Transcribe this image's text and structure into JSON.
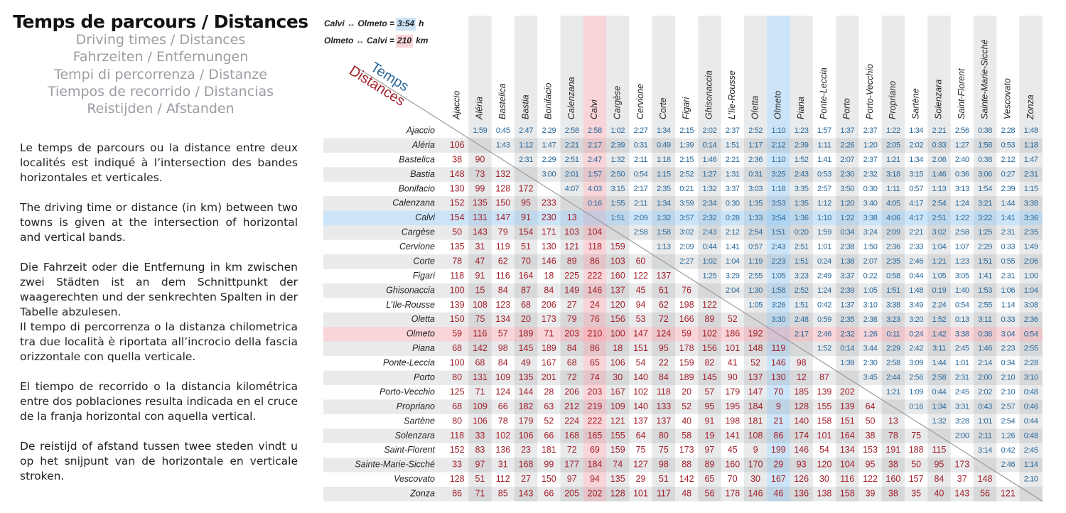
{
  "header": {
    "title": "Temps de parcours / Distances",
    "subtitles": [
      "Driving times / Distances",
      "Fahrzeiten / Entfernungen",
      "Tempi di percorrenza / Distanze",
      "Tiempos de recorrido / Distancias",
      "Reistijden / Afstanden"
    ]
  },
  "paragraphs": [
    "Le temps de parcours ou la distance entre deux localités est indiqué à l’intersection des bandes horizontales et verticales.",
    "The driving time or distance (in km) between two towns is given at the intersection of horizontal and vertical bands.",
    "Die Fahrzeit oder die Entfernung in km zwischen zwei Städten ist an dem Schnittpunkt der waagerechten und der senkrechten Spalten in der Tabelle abzulesen.",
    "Il tempo di percorrenza o la distanza chilometrica tra due località è riportata all’incrocio della fascia orizzontale con quella verticale.",
    "El tiempo de recorrido o la distancia kilométrica entre dos poblaciones resulta indicada en el cruce de la franja horizontal con aquella vertical.",
    "De reistijd of afstand tussen twee steden vindt u op het snijpunt van de horizontale en verticale stroken."
  ],
  "example": [
    {
      "text": "Calvi ↔ Olmeto =",
      "value": "3:54",
      "unit": "h"
    },
    {
      "text": "Olmeto ↔ Calvi =",
      "value": 210,
      "unit": "km"
    }
  ],
  "corner": {
    "times": "Temps",
    "distances": "Distances"
  },
  "towns": [
    "Ajaccio",
    "Aléria",
    "Bastelica",
    "Bastia",
    "Bonifacio",
    "Calenzana",
    "Calvi",
    "Cargèse",
    "Cervione",
    "Corte",
    "Figari",
    "Ghisonaccia",
    "L’Ile-Rousse",
    "Oletta",
    "Olmeto",
    "Piana",
    "Ponte-Leccia",
    "Porto",
    "Porto-Vecchio",
    "Propriano",
    "Sartène",
    "Solenzara",
    "Saint-Florent",
    "Sainte-Marie-Sicché",
    "Vescovato",
    "Zonza"
  ],
  "rows": [
    {
      "distances": [],
      "times": [
        "1:59",
        "0:45",
        "2:47",
        "2:29",
        "2:58",
        "2:58",
        "1:02",
        "2:27",
        "1:34",
        "2:15",
        "2:02",
        "2:37",
        "2:52",
        "1:10",
        "1:23",
        "1:57",
        "1:37",
        "2:37",
        "1:22",
        "1:34",
        "2:21",
        "2:56",
        "0:38",
        "2:28",
        "1:48"
      ]
    },
    {
      "distances": [
        106
      ],
      "times": [
        "1:43",
        "1:12",
        "1:47",
        "2:21",
        "2:17",
        "2:39",
        "0:31",
        "0:49",
        "1:39",
        "0:14",
        "1:51",
        "1:17",
        "2:12",
        "2:39",
        "1:11",
        "2:26",
        "1:20",
        "2:05",
        "2:02",
        "0:33",
        "1:27",
        "1:58",
        "0:53",
        "1:18"
      ]
    },
    {
      "distances": [
        38,
        90
      ],
      "times": [
        "2:31",
        "2:29",
        "2:51",
        "2:47",
        "1:32",
        "2:11",
        "1:18",
        "2:15",
        "1:46",
        "2:21",
        "2:36",
        "1:10",
        "1:52",
        "1:41",
        "2:07",
        "2:37",
        "1:21",
        "1:34",
        "2:06",
        "2:40",
        "0:38",
        "2:12",
        "1:47"
      ]
    },
    {
      "distances": [
        148,
        73,
        132
      ],
      "times": [
        "3:00",
        "2:01",
        "1:57",
        "2:50",
        "0:54",
        "1:15",
        "2:52",
        "1:27",
        "1:31",
        "0:31",
        "3:25",
        "2:43",
        "0:53",
        "2:30",
        "2:32",
        "3:18",
        "3:15",
        "1:46",
        "0:36",
        "3:06",
        "0:27",
        "2:31"
      ]
    },
    {
      "distances": [
        130,
        99,
        128,
        172
      ],
      "times": [
        "4:07",
        "4:03",
        "3:15",
        "2:17",
        "2:35",
        "0:21",
        "1:32",
        "3:37",
        "3:03",
        "1:18",
        "3:35",
        "2:57",
        "3:50",
        "0:30",
        "1:11",
        "0:57",
        "1:13",
        "3:13",
        "1:54",
        "2:39",
        "1:15"
      ]
    },
    {
      "distances": [
        152,
        135,
        150,
        95,
        233
      ],
      "times": [
        "0:16",
        "1:55",
        "2:11",
        "1:34",
        "3:59",
        "2:34",
        "0:30",
        "1:35",
        "3:53",
        "1:35",
        "1:12",
        "1:20",
        "3:40",
        "4:05",
        "4:17",
        "2:54",
        "1:24",
        "3:21",
        "1:44",
        "3:38"
      ]
    },
    {
      "distances": [
        154,
        131,
        147,
        91,
        230,
        13
      ],
      "times": [
        "1:51",
        "2:09",
        "1:32",
        "3:57",
        "2:32",
        "0:28",
        "1:33",
        "3:54",
        "1:36",
        "1:10",
        "1:22",
        "3:38",
        "4:06",
        "4:17",
        "2:51",
        "1:22",
        "3:22",
        "1:41",
        "3:36"
      ]
    },
    {
      "distances": [
        50,
        143,
        79,
        154,
        171,
        103,
        104
      ],
      "times": [
        "2:58",
        "1:58",
        "3:02",
        "2:43",
        "2:12",
        "2:54",
        "1:51",
        "0:20",
        "1:59",
        "0:34",
        "3:24",
        "2:09",
        "2:21",
        "3:02",
        "2:58",
        "1:25",
        "2:31",
        "2:35"
      ]
    },
    {
      "distances": [
        135,
        31,
        119,
        51,
        130,
        121,
        118,
        159
      ],
      "times": [
        "1:13",
        "2:09",
        "0:44",
        "1:41",
        "0:57",
        "2:43",
        "2:51",
        "1:01",
        "2:38",
        "1:50",
        "2:36",
        "2:33",
        "1:04",
        "1:07",
        "2:29",
        "0:33",
        "1:49"
      ]
    },
    {
      "distances": [
        78,
        47,
        62,
        70,
        146,
        89,
        86,
        103,
        60
      ],
      "times": [
        "2:27",
        "1:02",
        "1:04",
        "1:19",
        "2:23",
        "1:51",
        "0:24",
        "1:38",
        "2:07",
        "2:35",
        "2:46",
        "1:21",
        "1:23",
        "1:51",
        "0:55",
        "2:06"
      ]
    },
    {
      "distances": [
        118,
        91,
        116,
        164,
        18,
        225,
        222,
        160,
        122,
        137
      ],
      "times": [
        "1:25",
        "3:29",
        "2:55",
        "1:05",
        "3:23",
        "2:49",
        "3:37",
        "0:22",
        "0:58",
        "0:44",
        "1:05",
        "3:05",
        "1:41",
        "2:31",
        "1:00"
      ]
    },
    {
      "distances": [
        100,
        15,
        84,
        87,
        84,
        149,
        146,
        137,
        45,
        61,
        76
      ],
      "times": [
        "2:04",
        "1:30",
        "1:58",
        "2:52",
        "1:24",
        "2:39",
        "1:05",
        "1:51",
        "1:48",
        "0:19",
        "1:40",
        "1:53",
        "1:06",
        "1:04"
      ]
    },
    {
      "distances": [
        139,
        108,
        123,
        68,
        206,
        27,
        24,
        120,
        94,
        62,
        198,
        122
      ],
      "times": [
        "1:05",
        "3:26",
        "1:51",
        "0:42",
        "1:37",
        "3:10",
        "3:38",
        "3:49",
        "2:24",
        "0:54",
        "2:55",
        "1:14",
        "3:08"
      ]
    },
    {
      "distances": [
        150,
        75,
        134,
        20,
        173,
        79,
        76,
        156,
        53,
        72,
        166,
        89,
        52
      ],
      "times": [
        "3:30",
        "2:48",
        "0:59",
        "2:35",
        "2:38",
        "3:23",
        "3:20",
        "1:52",
        "0:13",
        "3:11",
        "0:33",
        "2:36"
      ]
    },
    {
      "distances": [
        59,
        116,
        57,
        189,
        71,
        203,
        210,
        100,
        147,
        124,
        59,
        102,
        186,
        192
      ],
      "times": [
        "2:17",
        "2:46",
        "2:32",
        "1:26",
        "0:11",
        "0:24",
        "1:42",
        "3:38",
        "0:36",
        "3:04",
        "0:54"
      ]
    },
    {
      "distances": [
        68,
        142,
        98,
        145,
        189,
        84,
        86,
        18,
        151,
        95,
        178,
        156,
        101,
        148,
        119
      ],
      "times": [
        "1:52",
        "0:14",
        "3:44",
        "2:29",
        "2:42",
        "3:11",
        "2:45",
        "1:46",
        "2:23",
        "2:55"
      ]
    },
    {
      "distances": [
        100,
        68,
        84,
        49,
        167,
        68,
        65,
        106,
        54,
        22,
        159,
        82,
        41,
        52,
        146,
        98
      ],
      "times": [
        "1:39",
        "2:30",
        "2:58",
        "3:09",
        "1:44",
        "1:01",
        "2:14",
        "0:34",
        "2:28"
      ]
    },
    {
      "distances": [
        80,
        131,
        109,
        135,
        201,
        72,
        74,
        30,
        140,
        84,
        189,
        145,
        90,
        137,
        130,
        12,
        87
      ],
      "times": [
        "3:45",
        "2:44",
        "2:56",
        "2:58",
        "2:31",
        "2:00",
        "2:10",
        "3:10"
      ]
    },
    {
      "distances": [
        125,
        71,
        124,
        144,
        28,
        206,
        203,
        167,
        102,
        118,
        20,
        57,
        179,
        147,
        70,
        185,
        139,
        202
      ],
      "times": [
        "1:21",
        "1:09",
        "0:44",
        "2:45",
        "2:02",
        "2:10",
        "0:48"
      ]
    },
    {
      "distances": [
        68,
        109,
        66,
        182,
        63,
        212,
        219,
        109,
        140,
        133,
        52,
        95,
        195,
        184,
        9,
        128,
        155,
        139,
        64
      ],
      "times": [
        "0:16",
        "1:34",
        "3:31",
        "0:43",
        "2:57",
        "0:46"
      ]
    },
    {
      "distances": [
        80,
        106,
        78,
        179,
        52,
        224,
        222,
        121,
        137,
        137,
        40,
        91,
        198,
        181,
        21,
        140,
        158,
        151,
        50,
        13
      ],
      "times": [
        "1:32",
        "3:28",
        "1:01",
        "2:54",
        "0:44"
      ]
    },
    {
      "distances": [
        118,
        33,
        102,
        106,
        66,
        168,
        165,
        155,
        64,
        80,
        58,
        19,
        141,
        108,
        86,
        174,
        101,
        164,
        38,
        78,
        75
      ],
      "times": [
        "2:00",
        "2:11",
        "1:26",
        "0:48"
      ]
    },
    {
      "distances": [
        152,
        83,
        136,
        23,
        181,
        72,
        69,
        159,
        75,
        75,
        173,
        97,
        45,
        9,
        199,
        146,
        54,
        134,
        153,
        191,
        188,
        115
      ],
      "times": [
        "3:14",
        "0:42",
        "2:45"
      ]
    },
    {
      "distances": [
        33,
        97,
        31,
        168,
        99,
        177,
        184,
        74,
        127,
        98,
        88,
        89,
        160,
        170,
        29,
        93,
        120,
        104,
        95,
        38,
        50,
        95,
        173
      ],
      "times": [
        "2:46",
        "1:14"
      ]
    },
    {
      "distances": [
        128,
        51,
        112,
        27,
        150,
        97,
        94,
        135,
        29,
        51,
        142,
        65,
        70,
        30,
        167,
        126,
        30,
        116,
        122,
        160,
        157,
        84,
        37,
        148
      ],
      "times": [
        "2:10"
      ]
    },
    {
      "distances": [
        86,
        71,
        85,
        143,
        66,
        205,
        202,
        128,
        101,
        117,
        48,
        56,
        178,
        146,
        46,
        136,
        138,
        158,
        39,
        38,
        35,
        40,
        143,
        56,
        121
      ],
      "times": []
    }
  ]
}
